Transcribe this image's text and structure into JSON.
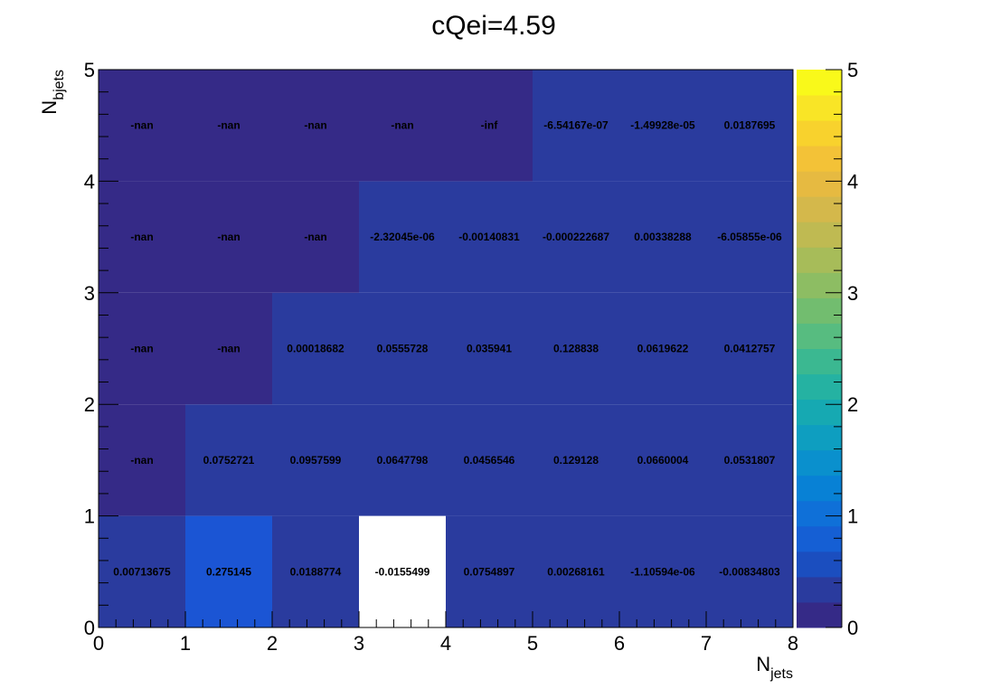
{
  "chart_data": {
    "type": "heatmap",
    "title": "cQei=4.59",
    "xlabel": {
      "main": "N",
      "sub": "jets"
    },
    "ylabel": {
      "main": "N",
      "sub": "bjets"
    },
    "x_edges": [
      0,
      1,
      2,
      3,
      4,
      5,
      6,
      7,
      8
    ],
    "y_edges": [
      0,
      1,
      2,
      3,
      4,
      5
    ],
    "xlim": [
      0,
      8
    ],
    "ylim": [
      0,
      5
    ],
    "x_ticks": [
      "0",
      "1",
      "2",
      "3",
      "4",
      "5",
      "6",
      "7",
      "8"
    ],
    "y_ticks": [
      "0",
      "1",
      "2",
      "3",
      "4",
      "5"
    ],
    "colorbar": {
      "range": [
        0,
        5
      ],
      "ticks": [
        "0",
        "1",
        "2",
        "3",
        "4",
        "5"
      ]
    },
    "rows": [
      {
        "y": 0.5,
        "labels": [
          "0.00713675",
          "0.275145",
          "0.0188774",
          "-0.0155499",
          "0.0754897",
          "0.00268161",
          "-1.10594e-06",
          "-0.00834803"
        ]
      },
      {
        "y": 1.5,
        "labels": [
          "-nan",
          "0.0752721",
          "0.0957599",
          "0.0647798",
          "0.0456546",
          "0.129128",
          "0.0660004",
          "0.0531807"
        ]
      },
      {
        "y": 2.5,
        "labels": [
          "-nan",
          "-nan",
          "0.00018682",
          "0.0555728",
          "0.035941",
          "0.128838",
          "0.0619622",
          "0.0412757"
        ]
      },
      {
        "y": 3.5,
        "labels": [
          "-nan",
          "-nan",
          "-nan",
          "-2.32045e-06",
          "-0.00140831",
          "-0.000222687",
          "0.00338288",
          "-6.05855e-06"
        ]
      },
      {
        "y": 4.5,
        "labels": [
          "-nan",
          "-nan",
          "-nan",
          "-nan",
          "-inf",
          "-6.54167e-07",
          "-1.49928e-05",
          "0.0187695"
        ]
      }
    ],
    "cell_colors": [
      [
        "#2a3b9e",
        "#1b55d4",
        "#2a3b9e",
        "#ffffff",
        "#2a3b9e",
        "#2a3b9e",
        "#2a3b9e",
        "#2a3b9e"
      ],
      [
        "#352a87",
        "#2a3b9e",
        "#2a3b9e",
        "#2a3b9e",
        "#2a3b9e",
        "#2a3b9e",
        "#2a3b9e",
        "#2a3b9e"
      ],
      [
        "#352a87",
        "#352a87",
        "#2a3b9e",
        "#2a3b9e",
        "#2a3b9e",
        "#2a3b9e",
        "#2a3b9e",
        "#2a3b9e"
      ],
      [
        "#352a87",
        "#352a87",
        "#352a87",
        "#2a3b9e",
        "#2a3b9e",
        "#2a3b9e",
        "#2a3b9e",
        "#2a3b9e"
      ],
      [
        "#352a87",
        "#352a87",
        "#352a87",
        "#352a87",
        "#352a87",
        "#2a3b9e",
        "#2a3b9e",
        "#2a3b9e"
      ]
    ],
    "colormap": [
      "#352a87",
      "#2a3b9e",
      "#1b4ebf",
      "#155fd4",
      "#0f70d8",
      "#0881d5",
      "#0a90cd",
      "#0e9ec0",
      "#16a9b2",
      "#25b2a2",
      "#3bb891",
      "#57bc80",
      "#72bd6f",
      "#8dbd63",
      "#a7bc59",
      "#bfba52",
      "#d4b84b",
      "#e6ba41",
      "#f3c237",
      "#f8d22d",
      "#f9e526",
      "#f9f91a"
    ]
  }
}
